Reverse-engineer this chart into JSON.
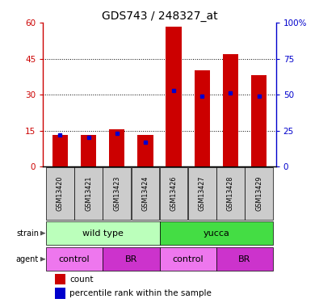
{
  "title": "GDS743 / 248327_at",
  "samples": [
    "GSM13420",
    "GSM13421",
    "GSM13423",
    "GSM13424",
    "GSM13426",
    "GSM13427",
    "GSM13428",
    "GSM13429"
  ],
  "count_values": [
    13,
    13,
    15.5,
    13,
    58.5,
    40,
    47,
    38
  ],
  "percentile_values": [
    22,
    20,
    23,
    17,
    53,
    49,
    51,
    49
  ],
  "bar_color": "#cc0000",
  "percentile_color": "#0000cc",
  "ylim_left": [
    0,
    60
  ],
  "ylim_right": [
    0,
    100
  ],
  "yticks_left": [
    0,
    15,
    30,
    45,
    60
  ],
  "yticks_right": [
    0,
    25,
    50,
    75,
    100
  ],
  "ytick_labels_right": [
    "0",
    "25",
    "50",
    "75",
    "100%"
  ],
  "xlabel_color_left": "#cc0000",
  "xlabel_color_right": "#0000cc",
  "bar_width": 0.55,
  "x_positions": [
    0,
    1,
    2,
    3,
    4,
    5,
    6,
    7
  ],
  "strain_wild_color": "#bbffbb",
  "strain_yucca_color": "#44dd44",
  "agent_control_color": "#ee77ee",
  "agent_br_color": "#cc33cc",
  "sample_box_color": "#cccccc"
}
